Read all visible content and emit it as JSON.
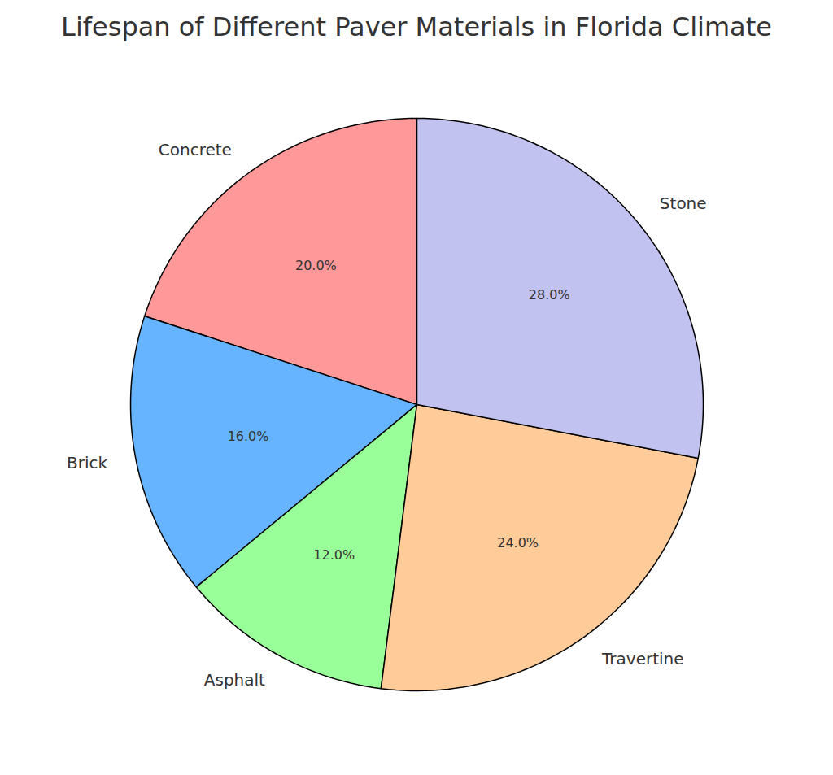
{
  "chart_data": {
    "type": "pie",
    "title": "Lifespan of Different Paver Materials in Florida Climate",
    "categories": [
      "Concrete",
      "Brick",
      "Asphalt",
      "Travertine",
      "Stone"
    ],
    "values": [
      20,
      16,
      12,
      24,
      28
    ],
    "value_labels": [
      "20.0%",
      "16.0%",
      "12.0%",
      "24.0%",
      "28.0%"
    ],
    "colors": [
      "#ff9999",
      "#66b3ff",
      "#99ff99",
      "#ffcc99",
      "#c2c2f0"
    ],
    "data_labels": true
  }
}
